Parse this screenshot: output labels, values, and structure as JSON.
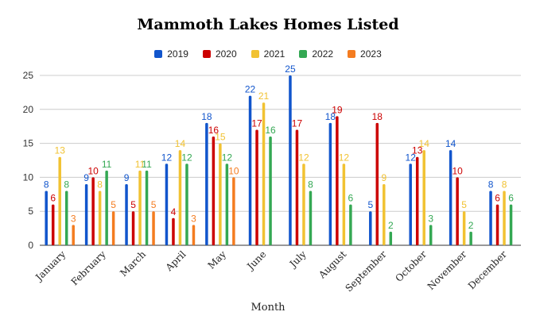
{
  "chart_data": {
    "type": "bar",
    "title": "Mammoth Lakes Homes Listed",
    "xlabel": "Month",
    "ylabel": "",
    "ylim": [
      0,
      25
    ],
    "yticks": [
      0,
      5,
      10,
      15,
      20,
      25
    ],
    "grid": true,
    "legend_position": "top",
    "categories": [
      "January",
      "February",
      "March",
      "April",
      "May",
      "June",
      "July",
      "August",
      "September",
      "October",
      "November",
      "December"
    ],
    "series": [
      {
        "name": "2019",
        "color": "#1155cc",
        "values": [
          8,
          9,
          9,
          12,
          18,
          22,
          25,
          18,
          5,
          12,
          14,
          8
        ]
      },
      {
        "name": "2020",
        "color": "#cc0000",
        "values": [
          6,
          10,
          5,
          4,
          16,
          17,
          17,
          19,
          18,
          13,
          10,
          6
        ]
      },
      {
        "name": "2021",
        "color": "#f1c232",
        "values": [
          13,
          8,
          11,
          14,
          15,
          21,
          12,
          12,
          9,
          14,
          5,
          8
        ]
      },
      {
        "name": "2022",
        "color": "#34a853",
        "values": [
          8,
          11,
          11,
          12,
          12,
          16,
          8,
          6,
          2,
          3,
          2,
          6
        ]
      },
      {
        "name": "2023",
        "color": "#f47c20",
        "values": [
          3,
          5,
          5,
          3,
          10,
          null,
          null,
          null,
          null,
          null,
          null,
          null
        ]
      }
    ]
  }
}
